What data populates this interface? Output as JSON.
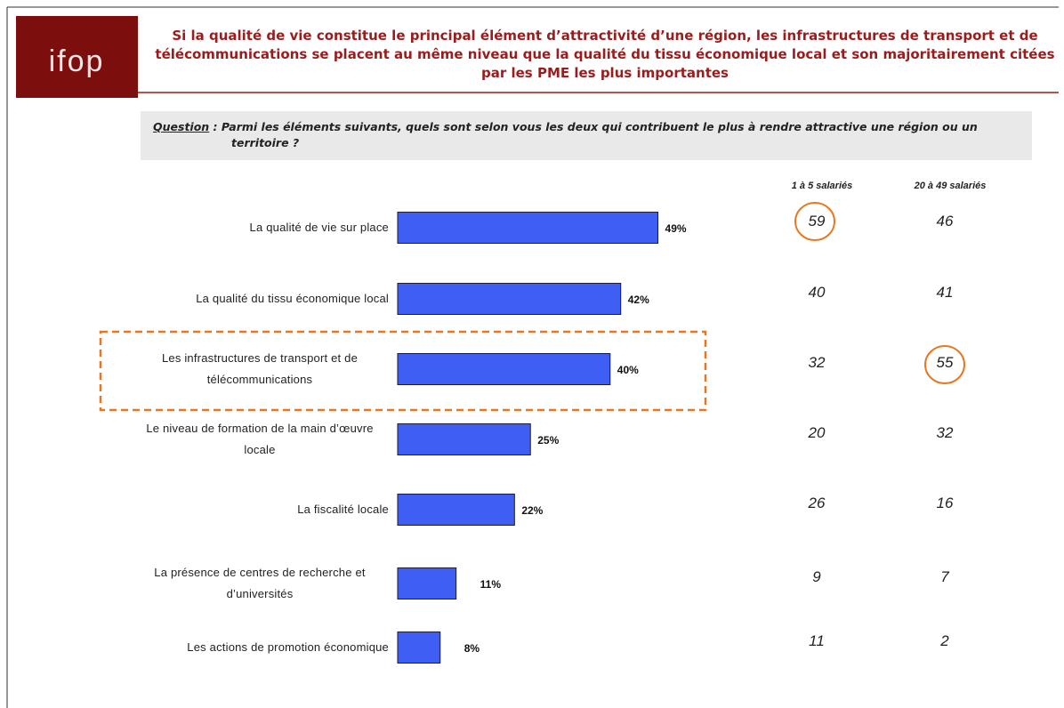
{
  "logo": "ifop",
  "title": "Si la qualité de vie constitue le principal élément d’attractivité d’une région, les infrastructures de transport et de télécommunications se placent au même niveau que la qualité du tissu économique local et son majoritairement citées par les PME les plus importantes",
  "question_label": "Question",
  "question_text": " : Parmi les éléments suivants, quels sont selon vous les deux qui contribuent le plus à rendre attractive une région ou un territoire ?",
  "chart_data": {
    "type": "bar",
    "orientation": "horizontal",
    "color": "#3e5ef4",
    "categories": [
      "La qualité de vie sur place",
      "La qualité du tissu économique local",
      "Les infrastructures de transport et de télécommunications",
      "Le niveau de formation de la main d’œuvre locale",
      "La fiscalité locale",
      "La présence de centres de recherche et d’universités",
      "Les actions de promotion économique"
    ],
    "values": [
      49,
      42,
      40,
      25,
      22,
      11,
      8
    ],
    "value_labels": [
      "49%",
      "42%",
      "40%",
      "25%",
      "22%",
      "11%",
      "8%"
    ],
    "columns": [
      {
        "name": "1 à 5 salariés",
        "values": [
          59,
          40,
          32,
          20,
          26,
          9,
          11
        ]
      },
      {
        "name": "20 à 49 salariés",
        "values": [
          46,
          41,
          55,
          32,
          16,
          7,
          2
        ]
      }
    ]
  }
}
